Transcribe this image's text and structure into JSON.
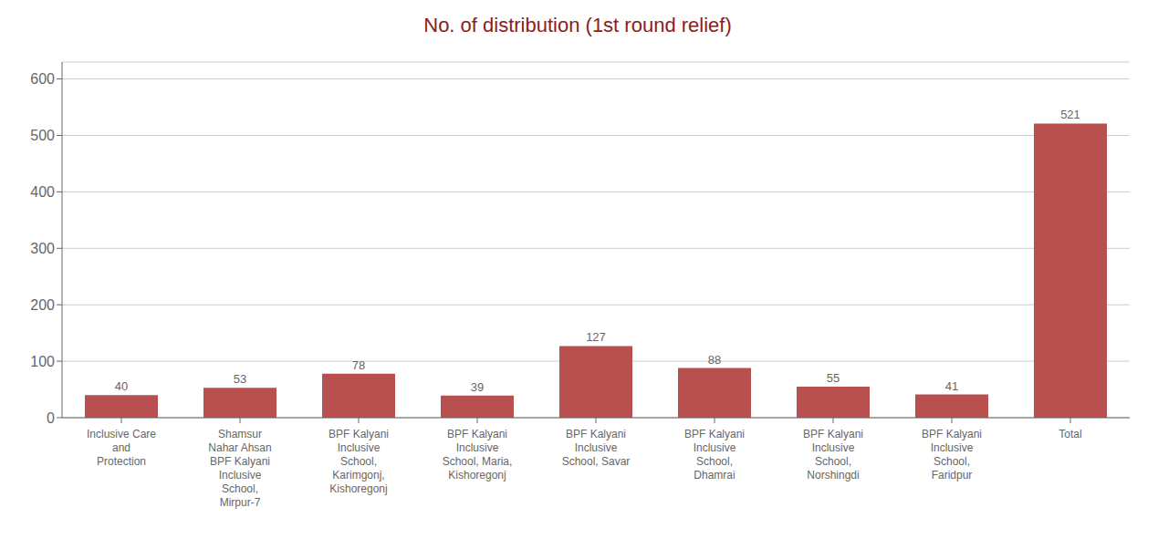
{
  "chart_data": {
    "type": "bar",
    "title": "No. of distribution (1st round relief)",
    "categories": [
      "Inclusive Care\nand\nProtection",
      "Shamsur\nNahar Ahsan\nBPF Kalyani\nInclusive\nSchool,\nMirpur-7",
      "BPF Kalyani\nInclusive\nSchool,\nKarimgonj,\nKishoregonj",
      "BPF Kalyani\nInclusive\nSchool, Maria,\nKishoregonj",
      "BPF Kalyani\nInclusive\nSchool, Savar",
      "BPF Kalyani\nInclusive\nSchool,\nDhamrai",
      "BPF Kalyani\nInclusive\nSchool,\nNorshingdi",
      "BPF Kalyani\nInclusive\nSchool,\nFaridpur",
      "Total"
    ],
    "values": [
      40,
      53,
      78,
      39,
      127,
      88,
      55,
      41,
      521
    ],
    "color": "#B85050",
    "ylim": [
      0,
      630
    ],
    "yticks": [
      0,
      100,
      200,
      300,
      400,
      500,
      600
    ],
    "grid": true,
    "data_labels": true
  }
}
